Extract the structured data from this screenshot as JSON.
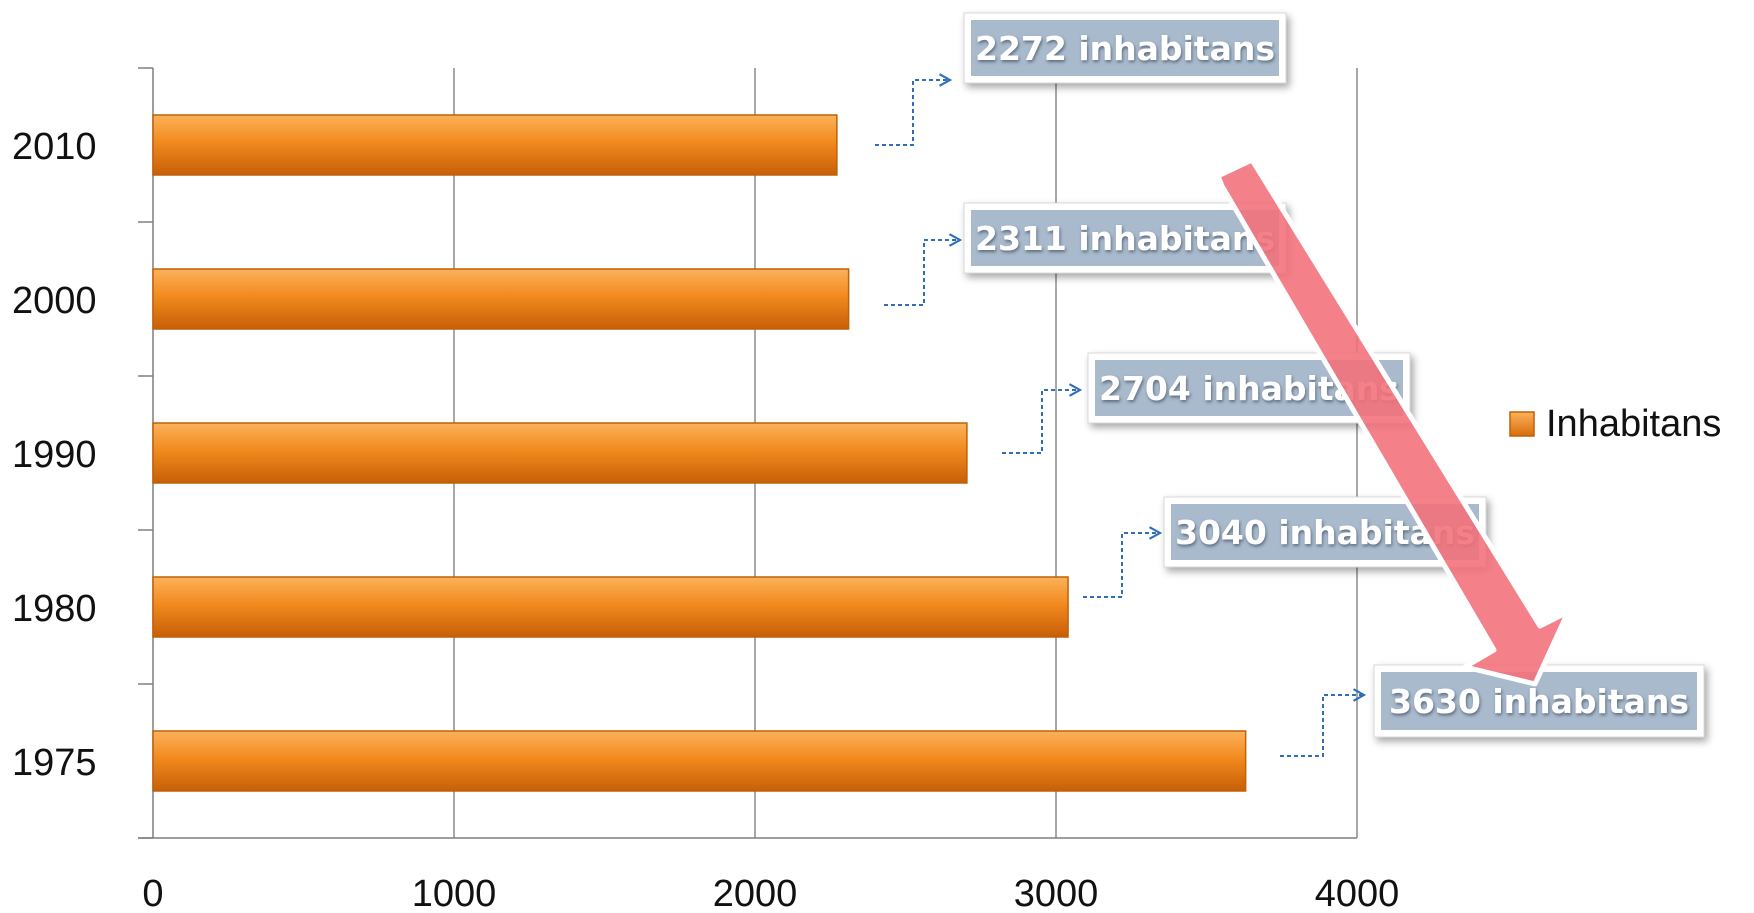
{
  "chart_data": {
    "type": "bar",
    "orientation": "horizontal",
    "categories": [
      "1975",
      "1980",
      "1990",
      "2000",
      "2010"
    ],
    "series": [
      {
        "name": "Inhabitans",
        "values": [
          3630,
          3040,
          2704,
          2311,
          2272
        ]
      }
    ],
    "xlim": [
      0,
      4000
    ],
    "x_ticks": [
      "0",
      "1000",
      "2000",
      "3000",
      "4000"
    ],
    "grid": "vertical",
    "legend": "right",
    "title": "",
    "xlabel": "",
    "ylabel": "",
    "annotations": [
      {
        "category": "2010",
        "text": "2272 inhabitans"
      },
      {
        "category": "2000",
        "text": "2311 inhabitans"
      },
      {
        "category": "1990",
        "text": "2704 inhabitans"
      },
      {
        "category": "1980",
        "text": "3040 inhabitans"
      },
      {
        "category": "1975",
        "text": "3630 inhabitans"
      }
    ],
    "trend_arrow": {
      "direction": "down",
      "color": "#f0707a"
    },
    "colors": {
      "bar": "#f08a1e",
      "bar_dark": "#c0600a",
      "callout_fill": "#a9bacd",
      "connector": "#2e6fb8",
      "grid": "#8c8c8c"
    }
  }
}
